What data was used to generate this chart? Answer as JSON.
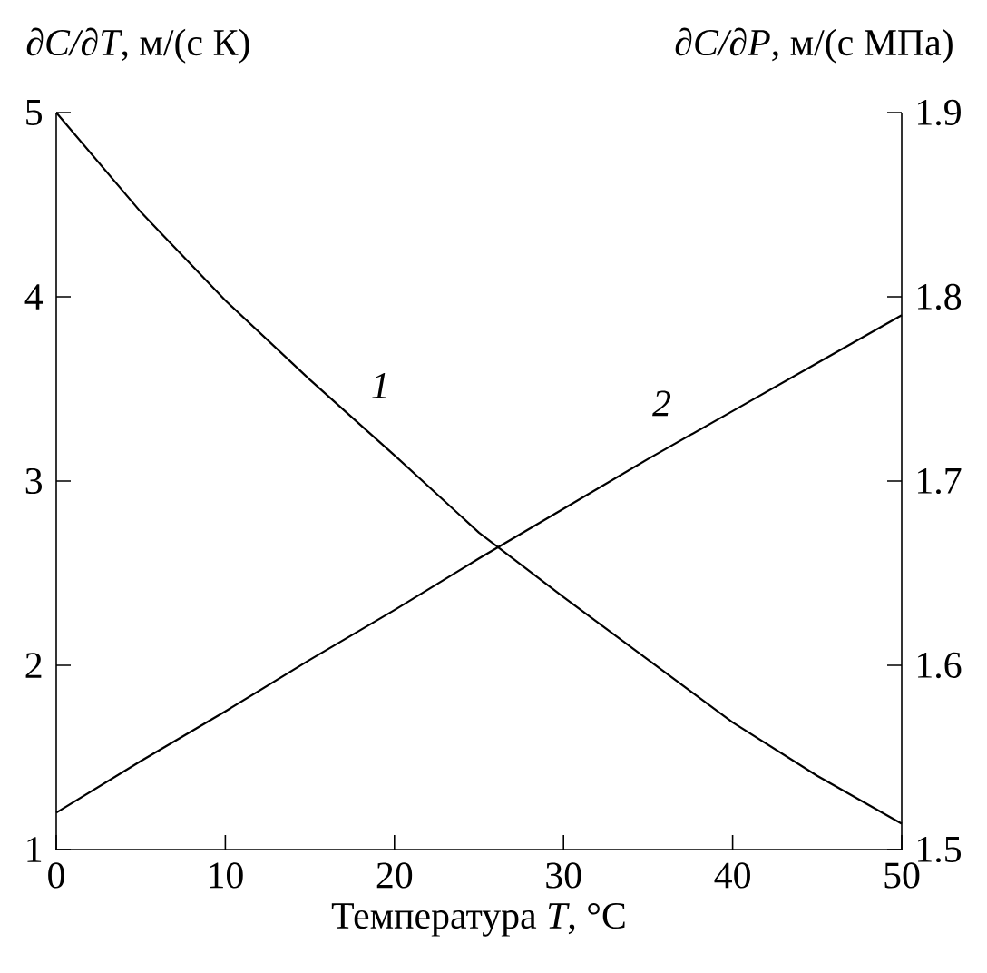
{
  "chart_data": {
    "type": "line",
    "xlabel": "Температура *T*, °C",
    "ylabel": "*∂C/∂T*, м/(с К)",
    "y2label": "*∂C/∂P*, м/(с МПа)",
    "x": [
      0,
      5,
      10,
      15,
      20,
      25,
      30,
      35,
      40,
      45,
      50
    ],
    "series": [
      {
        "name": "1",
        "color": "#000000",
        "values": [
          5,
          4.46,
          3.98,
          3.55,
          3.14,
          2.72,
          2.37,
          2.03,
          1.69,
          1.4,
          1.14
        ]
      },
      {
        "name": "2",
        "color": "#000000",
        "axis": "y2",
        "values": [
          1.52,
          1.548,
          1.575,
          1.603,
          1.63,
          1.658,
          1.685,
          1.712,
          1.738,
          1.764,
          1.79
        ]
      }
    ],
    "xlim": [
      0,
      50
    ],
    "xticks": [
      0,
      10,
      20,
      30,
      40,
      50
    ],
    "ylim": [
      1,
      5
    ],
    "yticks": [
      1,
      2,
      3,
      4,
      5
    ],
    "y2lim": [
      1.5,
      1.9
    ],
    "y2ticks": [
      1.5,
      1.6,
      1.7,
      1.8,
      1.9
    ],
    "marker": "none"
  }
}
